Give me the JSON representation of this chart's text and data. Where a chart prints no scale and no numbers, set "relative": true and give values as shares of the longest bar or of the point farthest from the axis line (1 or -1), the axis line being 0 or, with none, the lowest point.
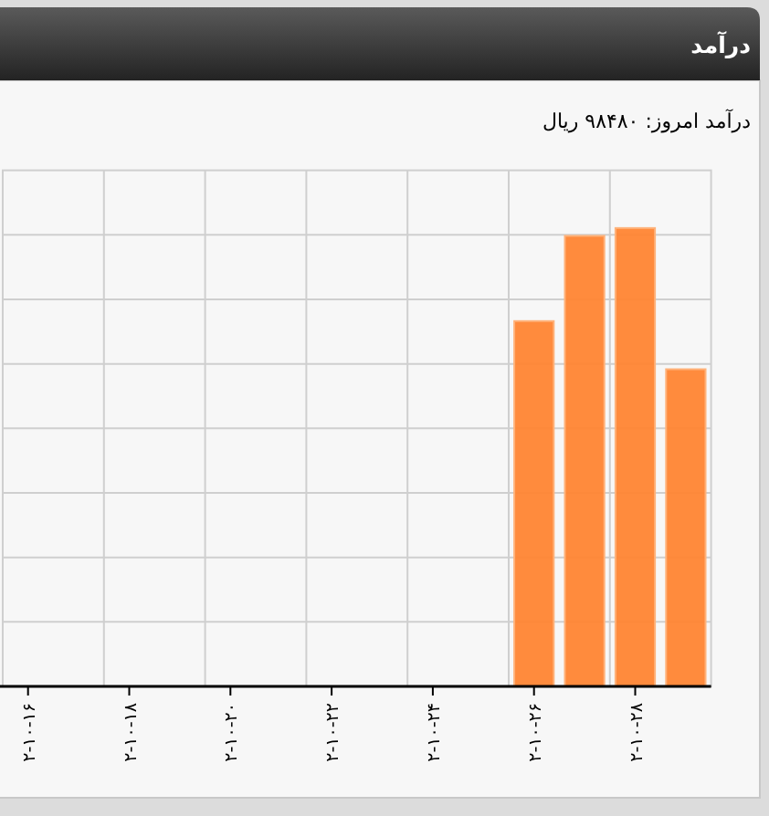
{
  "chart_data": {
    "type": "bar",
    "title": "درآمد",
    "subtitle": "درآمد امروز: ۹۸۴۸۰ ریال",
    "categories": [
      "۲-۱۰-۱۶",
      null,
      "۲-۱۰-۱۸",
      null,
      "۲-۱۰-۲۰",
      null,
      "۲-۱۰-۲۲",
      null,
      "۲-۱۰-۲۴",
      null,
      "۲-۱۰-۲۶",
      null,
      "۲-۱۰-۲۸",
      null
    ],
    "values": [
      null,
      null,
      null,
      null,
      null,
      null,
      null,
      null,
      null,
      null,
      0.797,
      0.983,
      1,
      0.692
    ],
    "color": "#ff8533",
    "relative": true,
    "grid": true
  }
}
